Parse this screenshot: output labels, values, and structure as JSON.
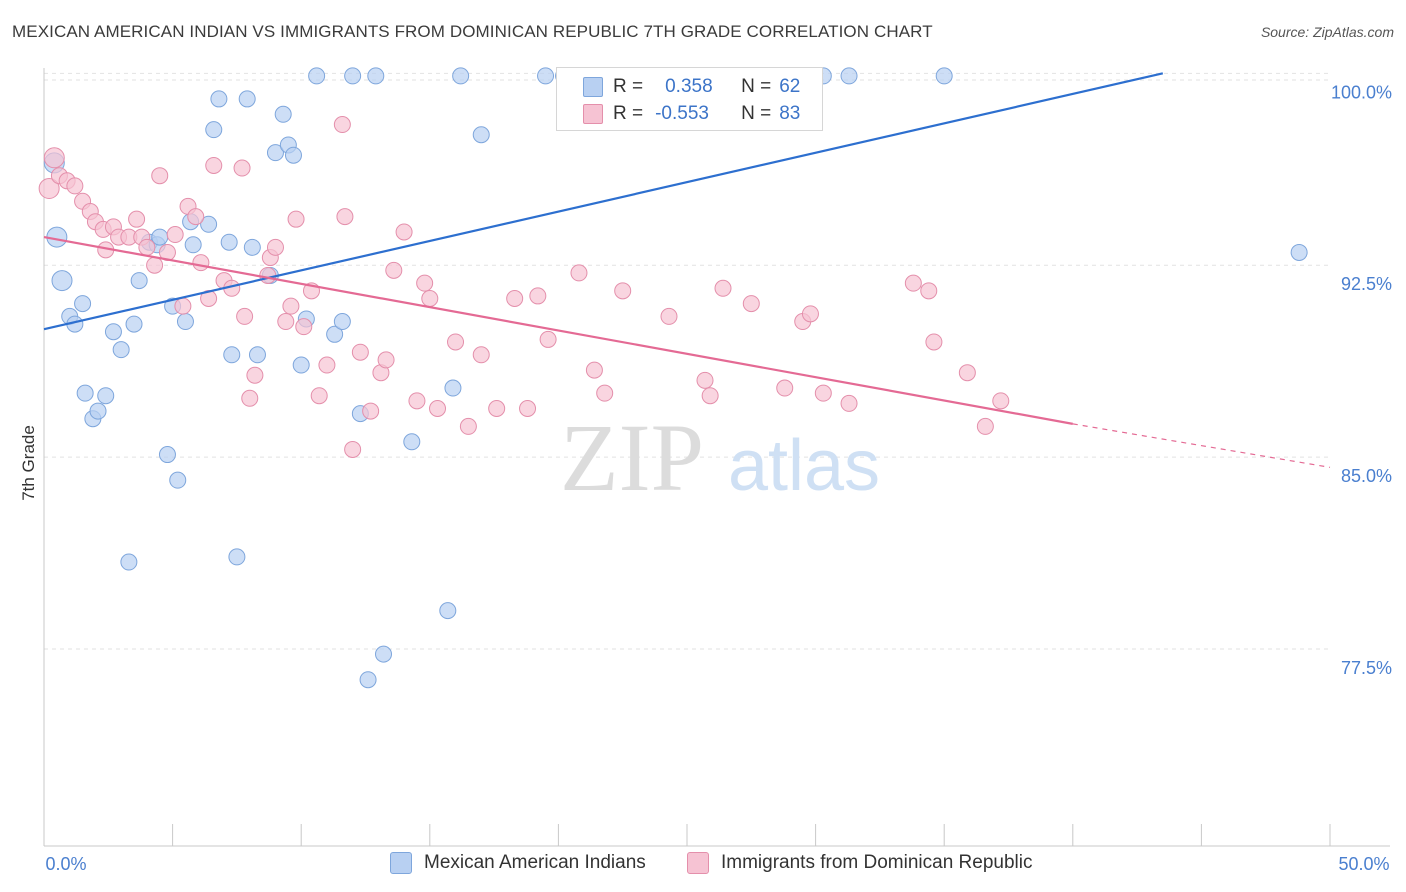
{
  "header": {
    "title": "MEXICAN AMERICAN INDIAN VS IMMIGRANTS FROM DOMINICAN REPUBLIC 7TH GRADE CORRELATION CHART",
    "source": "Source: ZipAtlas.com"
  },
  "watermark": {
    "zip": "ZIP",
    "atlas": "atlas"
  },
  "legend": {
    "r_label": "R =",
    "n_label": "N =",
    "series1": {
      "r": "0.358",
      "n": "62"
    },
    "series2": {
      "r": "-0.553",
      "n": "83"
    }
  },
  "colors": {
    "blue_fill": "#b8d0f2",
    "blue_stroke": "#7ea6dc",
    "blue_line": "#2d6fcf",
    "pink_fill": "#f6c3d3",
    "pink_stroke": "#e48fab",
    "pink_line": "#e46a94",
    "tick_label": "#4a7fcf",
    "grid": "#e2e2e2"
  },
  "chart_data": {
    "type": "scatter",
    "title": "MEXICAN AMERICAN INDIAN VS IMMIGRANTS FROM DOMINICAN REPUBLIC 7TH GRADE CORRELATION CHART",
    "xlabel": "",
    "ylabel": "7th Grade",
    "xlim": [
      0,
      50
    ],
    "ylim": [
      69.8,
      100.6
    ],
    "x_tick_labels": [
      {
        "value": 0,
        "label": "0.0%"
      },
      {
        "value": 50,
        "label": "50.0%"
      }
    ],
    "y_ticks": [
      {
        "value": 100,
        "label": "100.0%"
      },
      {
        "value": 92.5,
        "label": "92.5%"
      },
      {
        "value": 85,
        "label": "85.0%"
      },
      {
        "value": 77.5,
        "label": "77.5%"
      }
    ],
    "grid": true,
    "legend_position": "top-center",
    "series": [
      {
        "name": "Mexican American Indians",
        "color": "#b8d0f2",
        "trend": {
          "x": [
            0,
            43.5
          ],
          "y": [
            90.0,
            100.0
          ]
        },
        "points": [
          [
            0.4,
            96.5
          ],
          [
            0.5,
            93.6
          ],
          [
            0.7,
            91.9
          ],
          [
            1.0,
            90.5
          ],
          [
            1.2,
            90.2
          ],
          [
            1.5,
            91.0
          ],
          [
            1.6,
            87.5
          ],
          [
            1.9,
            86.5
          ],
          [
            2.1,
            86.8
          ],
          [
            2.4,
            87.4
          ],
          [
            2.7,
            89.9
          ],
          [
            3.0,
            89.2
          ],
          [
            3.3,
            80.9
          ],
          [
            3.5,
            90.2
          ],
          [
            3.7,
            91.9
          ],
          [
            4.1,
            93.4
          ],
          [
            4.4,
            93.3
          ],
          [
            4.5,
            93.6
          ],
          [
            4.8,
            85.1
          ],
          [
            5.0,
            90.9
          ],
          [
            5.2,
            84.1
          ],
          [
            5.5,
            90.3
          ],
          [
            5.7,
            94.2
          ],
          [
            5.8,
            93.3
          ],
          [
            6.4,
            94.1
          ],
          [
            6.6,
            97.8
          ],
          [
            6.8,
            99.0
          ],
          [
            7.2,
            93.4
          ],
          [
            7.3,
            89.0
          ],
          [
            7.5,
            81.1
          ],
          [
            7.9,
            99.0
          ],
          [
            8.1,
            93.2
          ],
          [
            8.3,
            89.0
          ],
          [
            8.8,
            92.1
          ],
          [
            9.0,
            96.9
          ],
          [
            9.3,
            98.4
          ],
          [
            9.5,
            97.2
          ],
          [
            9.7,
            96.8
          ],
          [
            10.0,
            88.6
          ],
          [
            10.2,
            90.4
          ],
          [
            10.6,
            99.9
          ],
          [
            11.3,
            89.8
          ],
          [
            11.6,
            90.3
          ],
          [
            12.0,
            99.9
          ],
          [
            12.3,
            86.7
          ],
          [
            12.6,
            76.3
          ],
          [
            12.9,
            99.9
          ],
          [
            13.2,
            77.3
          ],
          [
            14.3,
            85.6
          ],
          [
            15.7,
            79.0
          ],
          [
            15.9,
            87.7
          ],
          [
            16.2,
            99.9
          ],
          [
            17.0,
            97.6
          ],
          [
            19.5,
            99.9
          ],
          [
            20.2,
            99.9
          ],
          [
            21.5,
            99.9
          ],
          [
            22.7,
            99.9
          ],
          [
            23.3,
            99.9
          ],
          [
            30.3,
            99.9
          ],
          [
            31.3,
            99.9
          ],
          [
            35.0,
            99.9
          ],
          [
            48.8,
            93.0
          ]
        ]
      },
      {
        "name": "Immigrants from Dominican Republic",
        "color": "#f6c3d3",
        "trend": {
          "x": [
            0,
            40.0
          ],
          "y": [
            93.6,
            86.3
          ]
        },
        "trend_dashed": {
          "x": [
            40.0,
            50.0
          ],
          "y": [
            86.3,
            84.6
          ]
        },
        "points": [
          [
            0.2,
            95.5
          ],
          [
            0.4,
            96.7
          ],
          [
            0.6,
            96.0
          ],
          [
            0.9,
            95.8
          ],
          [
            1.2,
            95.6
          ],
          [
            1.5,
            95.0
          ],
          [
            1.8,
            94.6
          ],
          [
            2.0,
            94.2
          ],
          [
            2.3,
            93.9
          ],
          [
            2.4,
            93.1
          ],
          [
            2.7,
            94.0
          ],
          [
            2.9,
            93.6
          ],
          [
            3.3,
            93.6
          ],
          [
            3.6,
            94.3
          ],
          [
            3.8,
            93.6
          ],
          [
            4.0,
            93.2
          ],
          [
            4.3,
            92.5
          ],
          [
            4.5,
            96.0
          ],
          [
            4.8,
            93.0
          ],
          [
            5.1,
            93.7
          ],
          [
            5.4,
            90.9
          ],
          [
            5.6,
            94.8
          ],
          [
            5.9,
            94.4
          ],
          [
            6.1,
            92.6
          ],
          [
            6.4,
            91.2
          ],
          [
            6.6,
            96.4
          ],
          [
            7.0,
            91.9
          ],
          [
            7.3,
            91.6
          ],
          [
            7.7,
            96.3
          ],
          [
            7.8,
            90.5
          ],
          [
            8.0,
            87.3
          ],
          [
            8.2,
            88.2
          ],
          [
            8.7,
            92.1
          ],
          [
            8.8,
            92.8
          ],
          [
            9.0,
            93.2
          ],
          [
            9.4,
            90.3
          ],
          [
            9.6,
            90.9
          ],
          [
            9.8,
            94.3
          ],
          [
            10.1,
            90.1
          ],
          [
            10.4,
            91.5
          ],
          [
            10.7,
            87.4
          ],
          [
            11.0,
            88.6
          ],
          [
            11.6,
            98.0
          ],
          [
            11.7,
            94.4
          ],
          [
            12.0,
            85.3
          ],
          [
            12.3,
            89.1
          ],
          [
            12.7,
            86.8
          ],
          [
            13.1,
            88.3
          ],
          [
            13.3,
            88.8
          ],
          [
            13.6,
            92.3
          ],
          [
            14.0,
            93.8
          ],
          [
            14.5,
            87.2
          ],
          [
            14.8,
            91.8
          ],
          [
            15.0,
            91.2
          ],
          [
            15.3,
            86.9
          ],
          [
            16.0,
            89.5
          ],
          [
            16.5,
            86.2
          ],
          [
            17.0,
            89.0
          ],
          [
            17.6,
            86.9
          ],
          [
            18.3,
            91.2
          ],
          [
            18.8,
            86.9
          ],
          [
            19.2,
            91.3
          ],
          [
            19.6,
            89.6
          ],
          [
            20.8,
            92.2
          ],
          [
            21.4,
            88.4
          ],
          [
            21.8,
            87.5
          ],
          [
            22.5,
            91.5
          ],
          [
            24.3,
            90.5
          ],
          [
            25.7,
            88.0
          ],
          [
            25.9,
            87.4
          ],
          [
            26.4,
            91.6
          ],
          [
            27.5,
            91.0
          ],
          [
            28.8,
            87.7
          ],
          [
            29.5,
            90.3
          ],
          [
            29.8,
            90.6
          ],
          [
            30.3,
            87.5
          ],
          [
            31.3,
            87.1
          ],
          [
            33.8,
            91.8
          ],
          [
            34.4,
            91.5
          ],
          [
            34.6,
            89.5
          ],
          [
            35.9,
            88.3
          ],
          [
            36.6,
            86.2
          ],
          [
            37.2,
            87.2
          ]
        ]
      }
    ]
  }
}
